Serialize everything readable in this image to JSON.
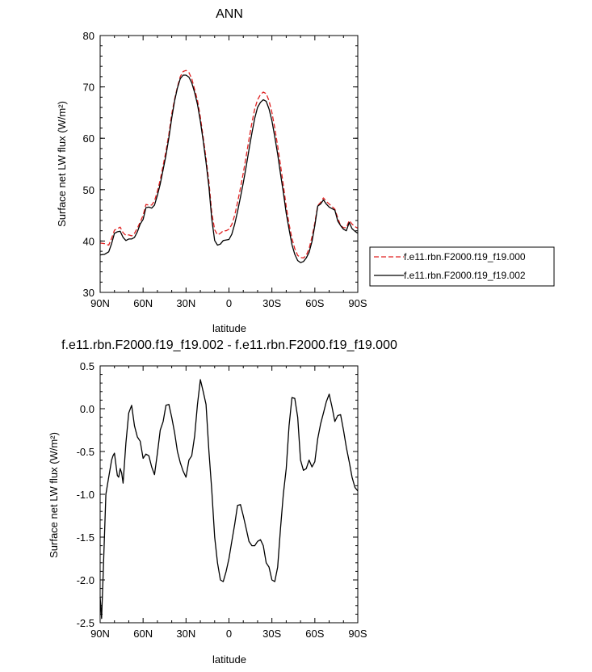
{
  "chart_data": [
    {
      "type": "line",
      "title": "ANN",
      "xlabel": "latitude",
      "ylabel": "Surface net LW flux (W/m²)",
      "xlim": [
        90,
        -90
      ],
      "ylim": [
        30,
        80
      ],
      "x_ticks": [
        90,
        60,
        30,
        0,
        -30,
        -60,
        -90
      ],
      "x_tick_labels": [
        "90N",
        "60N",
        "30N",
        "0",
        "30S",
        "60S",
        "90S"
      ],
      "y_ticks": [
        30,
        40,
        50,
        60,
        70,
        80
      ],
      "y_tick_labels": [
        "30",
        "40",
        "50",
        "60",
        "70",
        "80"
      ],
      "legend_position": "right",
      "x": [
        90,
        87,
        84,
        82,
        80,
        78,
        76,
        74,
        72,
        70,
        68,
        66,
        64,
        62,
        60,
        58,
        56,
        54,
        52,
        50,
        48,
        46,
        44,
        42,
        40,
        38,
        36,
        34,
        32,
        30,
        28,
        26,
        24,
        22,
        20,
        18,
        16,
        14,
        12,
        10,
        8,
        6,
        4,
        2,
        0,
        -2,
        -4,
        -6,
        -8,
        -10,
        -12,
        -14,
        -16,
        -18,
        -20,
        -22,
        -24,
        -26,
        -28,
        -30,
        -32,
        -34,
        -36,
        -38,
        -40,
        -42,
        -44,
        -46,
        -48,
        -50,
        -52,
        -54,
        -56,
        -58,
        -60,
        -62,
        -64,
        -66,
        -68,
        -70,
        -72,
        -74,
        -76,
        -78,
        -80,
        -82,
        -84,
        -86,
        -88,
        -90
      ],
      "series": [
        {
          "name": "f.e11.rbn.F2000.f19_f19.000",
          "color": "#e02020",
          "dash": "dashed",
          "values": [
            39.6,
            39.5,
            39.2,
            40.5,
            42.1,
            42.4,
            42.7,
            41.6,
            41.1,
            41.2,
            41.0,
            41.5,
            42.5,
            43.7,
            45.0,
            47.1,
            47.0,
            47.0,
            47.8,
            49.7,
            51.9,
            54.7,
            57.5,
            60.8,
            64.7,
            67.6,
            70.0,
            72.0,
            73.0,
            73.2,
            72.8,
            71.6,
            69.5,
            67.4,
            64.1,
            60.2,
            56.1,
            51.5,
            45.5,
            42.2,
            41.2,
            41.5,
            42.0,
            42.0,
            42.3,
            43.2,
            45.0,
            47.5,
            50.3,
            53.2,
            56.5,
            59.8,
            63.0,
            65.7,
            67.5,
            68.5,
            69.0,
            68.7,
            67.3,
            65.0,
            62.0,
            58.5,
            54.8,
            50.9,
            46.7,
            43.3,
            40.5,
            38.5,
            37.2,
            36.8,
            36.7,
            37.2,
            38.5,
            40.8,
            43.5,
            46.9,
            47.5,
            48.4,
            47.7,
            47.2,
            46.7,
            46.2,
            44.5,
            43.0,
            42.6,
            42.6,
            44.0,
            43.3,
            42.8,
            42.5
          ]
        },
        {
          "name": "f.e11.rbn.F2000.f19_f19.002",
          "color": "#000000",
          "dash": "solid",
          "values": [
            37.3,
            37.4,
            37.9,
            39.5,
            41.5,
            41.8,
            41.9,
            40.7,
            40.1,
            40.4,
            40.4,
            40.7,
            41.8,
            43.3,
            44.2,
            46.5,
            46.6,
            46.4,
            47.0,
            48.9,
            51.1,
            53.9,
            56.7,
            60.1,
            63.9,
            67.3,
            69.8,
            71.6,
            72.3,
            72.3,
            71.9,
            70.8,
            68.9,
            66.6,
            63.3,
            59.5,
            55.3,
            50.5,
            44.3,
            40.1,
            39.2,
            39.4,
            40.1,
            40.2,
            40.3,
            41.3,
            43.3,
            45.7,
            48.5,
            51.3,
            54.5,
            57.8,
            61.0,
            63.9,
            66.0,
            67.0,
            67.5,
            67.2,
            65.7,
            63.4,
            60.3,
            56.9,
            53.1,
            49.5,
            45.4,
            42.3,
            39.3,
            37.4,
            36.2,
            35.8,
            36.0,
            36.7,
            37.8,
            39.9,
            43.0,
            46.8,
            47.2,
            48.0,
            47.2,
            46.6,
            46.3,
            46.0,
            43.9,
            43.0,
            42.3,
            42.0,
            43.6,
            42.4,
            41.9,
            41.5
          ]
        }
      ]
    },
    {
      "type": "line",
      "title": "f.e11.rbn.F2000.f19_f19.002 - f.e11.rbn.F2000.f19_f19.000",
      "xlabel": "latitude",
      "ylabel": "Surface net LW flux (W/m²)",
      "xlim": [
        90,
        -90
      ],
      "ylim": [
        -2.5,
        0.5
      ],
      "x_ticks": [
        90,
        60,
        30,
        0,
        -30,
        -60,
        -90
      ],
      "x_tick_labels": [
        "90N",
        "60N",
        "30N",
        "0",
        "30S",
        "60S",
        "90S"
      ],
      "y_ticks": [
        -2.5,
        -2.0,
        -1.5,
        -1.0,
        -0.5,
        0.0,
        0.5
      ],
      "y_tick_labels": [
        "-2.5",
        "-2.0",
        "-1.5",
        "-1.0",
        "-0.5",
        "0.0",
        "0.5"
      ],
      "series": [
        {
          "color": "#000000",
          "dash": "solid",
          "x": [
            90,
            89,
            88,
            86,
            84,
            82,
            81,
            80,
            78,
            77,
            76,
            75,
            74,
            72,
            70,
            68,
            66,
            64,
            62,
            60,
            58,
            56,
            54,
            52,
            50,
            48,
            46,
            44,
            42,
            40,
            38,
            36,
            34,
            32,
            30,
            28,
            26,
            24,
            22,
            20,
            18,
            16,
            14,
            12,
            10,
            8,
            6,
            4,
            2,
            0,
            -2,
            -4,
            -6,
            -8,
            -10,
            -12,
            -14,
            -16,
            -18,
            -20,
            -22,
            -24,
            -26,
            -28,
            -30,
            -32,
            -34,
            -36,
            -38,
            -40,
            -42,
            -44,
            -46,
            -48,
            -50,
            -52,
            -54,
            -56,
            -58,
            -60,
            -62,
            -64,
            -66,
            -68,
            -70,
            -72,
            -74,
            -76,
            -78,
            -80,
            -82,
            -84,
            -86,
            -88,
            -90
          ],
          "values": [
            -2.2,
            -2.45,
            -2.0,
            -1.0,
            -0.8,
            -0.6,
            -0.55,
            -0.52,
            -0.78,
            -0.8,
            -0.7,
            -0.75,
            -0.87,
            -0.4,
            -0.05,
            0.04,
            -0.2,
            -0.33,
            -0.38,
            -0.58,
            -0.53,
            -0.55,
            -0.68,
            -0.77,
            -0.52,
            -0.25,
            -0.15,
            0.04,
            0.05,
            -0.1,
            -0.28,
            -0.5,
            -0.63,
            -0.73,
            -0.8,
            -0.6,
            -0.55,
            -0.32,
            0.05,
            0.34,
            0.2,
            0.05,
            -0.5,
            -0.95,
            -1.5,
            -1.8,
            -2.0,
            -2.02,
            -1.9,
            -1.75,
            -1.55,
            -1.35,
            -1.13,
            -1.12,
            -1.25,
            -1.4,
            -1.55,
            -1.6,
            -1.6,
            -1.55,
            -1.53,
            -1.6,
            -1.8,
            -1.85,
            -2.0,
            -2.02,
            -1.85,
            -1.4,
            -1.0,
            -0.7,
            -0.2,
            0.13,
            0.12,
            -0.1,
            -0.6,
            -0.72,
            -0.7,
            -0.6,
            -0.68,
            -0.62,
            -0.35,
            -0.18,
            -0.05,
            0.08,
            0.17,
            0.02,
            -0.15,
            -0.08,
            -0.07,
            -0.25,
            -0.45,
            -0.62,
            -0.8,
            -0.92,
            -0.96
          ]
        }
      ]
    }
  ]
}
